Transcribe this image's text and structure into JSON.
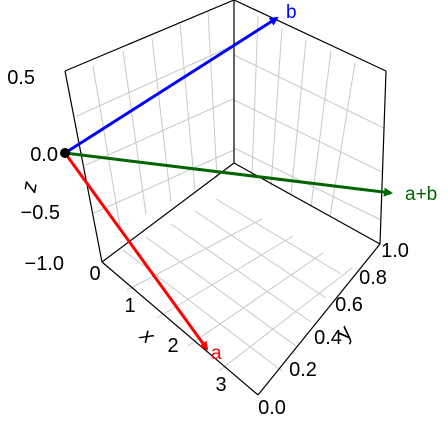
{
  "chart_data": {
    "type": "3d-vector",
    "axes": {
      "x": {
        "label": "x",
        "ticks": [
          "0",
          "1",
          "2",
          "3"
        ]
      },
      "y": {
        "label": "y",
        "ticks": [
          "0.0",
          "0.2",
          "0.4",
          "0.6",
          "0.8",
          "1.0"
        ]
      },
      "z": {
        "label": "z",
        "ticks": [
          "0.5",
          "0.0",
          "−0.5",
          "−1.0"
        ]
      }
    },
    "origin": [
      0,
      0,
      0
    ],
    "vectors": [
      {
        "label": "a",
        "color": "#ff0000",
        "from": [
          0,
          0,
          0
        ]
      },
      {
        "label": "b",
        "color": "#0000ff",
        "from": [
          0,
          0,
          0
        ]
      },
      {
        "label": "a+b",
        "color": "#006400",
        "from": [
          0,
          0,
          0
        ]
      }
    ],
    "grid": true
  }
}
